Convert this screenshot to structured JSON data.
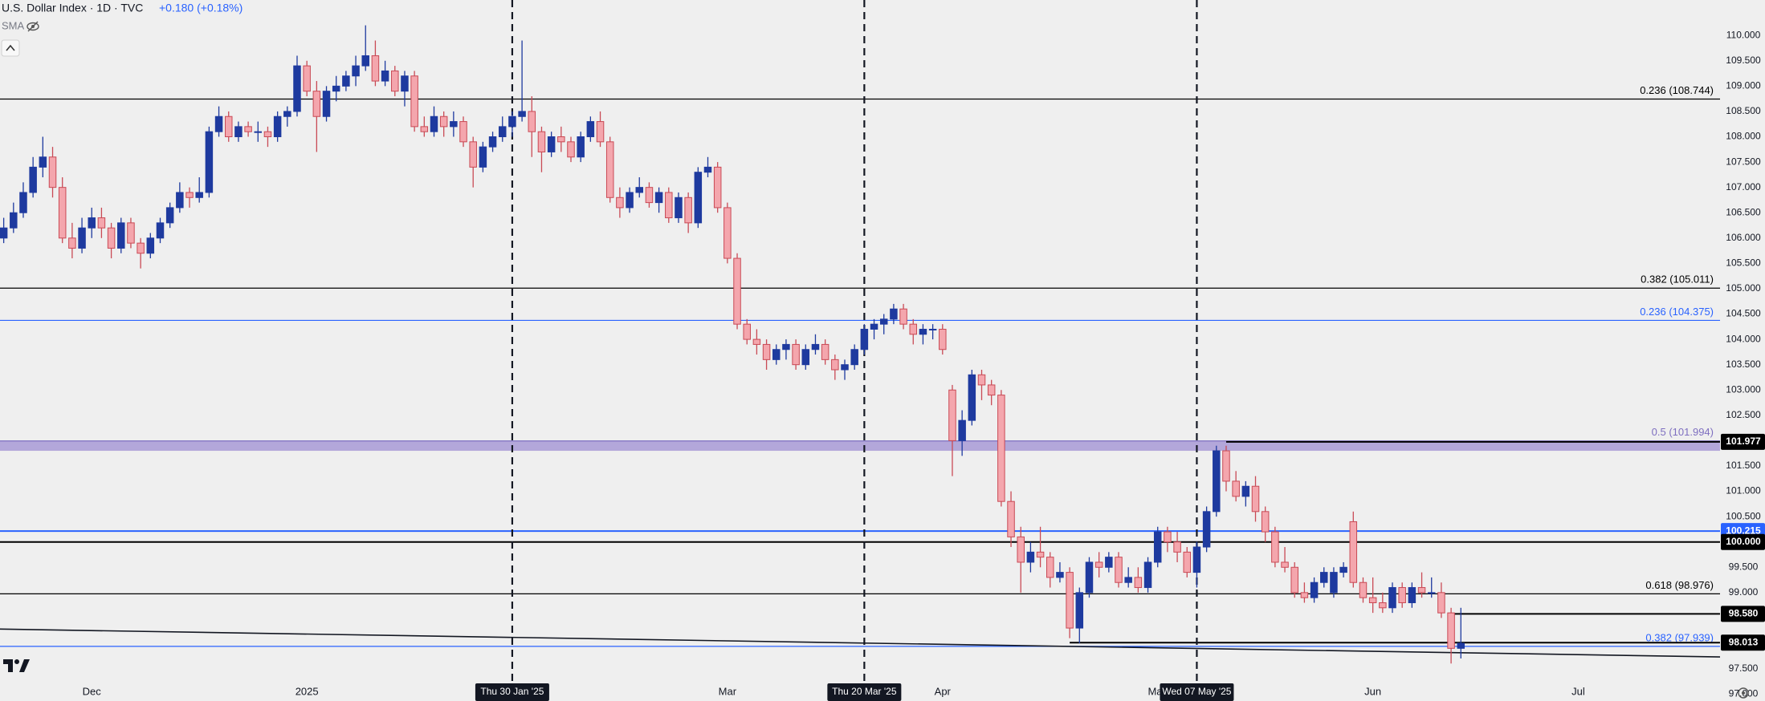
{
  "chart_data": {
    "type": "candlestick",
    "title": "U.S. Dollar Index · 1D · TVC",
    "change": "+0.180 (+0.18%)",
    "indicator": "SMA",
    "bull_color": "#1e3a9f",
    "bear_color": "#f4a6ad",
    "bear_edge": "#c94a55",
    "xlim": [
      -0.38,
      175.5
    ],
    "ylim": [
      96.86,
      110.7
    ],
    "xticks": [
      {
        "value": 9,
        "label": "Dec"
      },
      {
        "value": 31,
        "label": "2025"
      },
      {
        "value": 74,
        "label": "Mar"
      },
      {
        "value": 96,
        "label": "Apr"
      },
      {
        "value": 118,
        "label": "May"
      },
      {
        "value": 140,
        "label": "Jun"
      },
      {
        "value": 161,
        "label": "Jul"
      }
    ],
    "yticks": [
      {
        "value": 97,
        "label": "97.000"
      },
      {
        "value": 97.5,
        "label": "97.500"
      },
      {
        "value": 98,
        "label": "98.000"
      },
      {
        "value": 98.5,
        "label": "98.500"
      },
      {
        "value": 99,
        "label": "99.000"
      },
      {
        "value": 99.5,
        "label": "99.500"
      },
      {
        "value": 100,
        "label": "100.000"
      },
      {
        "value": 100.5,
        "label": "100.500"
      },
      {
        "value": 101,
        "label": "101.000"
      },
      {
        "value": 101.5,
        "label": "101.500"
      },
      {
        "value": 102,
        "label": "102.000"
      },
      {
        "value": 102.5,
        "label": "102.500"
      },
      {
        "value": 103,
        "label": "103.000"
      },
      {
        "value": 103.5,
        "label": "103.500"
      },
      {
        "value": 104,
        "label": "104.000"
      },
      {
        "value": 104.5,
        "label": "104.500"
      },
      {
        "value": 105,
        "label": "105.000"
      },
      {
        "value": 105.5,
        "label": "105.500"
      },
      {
        "value": 106,
        "label": "106.000"
      },
      {
        "value": 106.5,
        "label": "106.500"
      },
      {
        "value": 107,
        "label": "107.000"
      },
      {
        "value": 107.5,
        "label": "107.500"
      },
      {
        "value": 108,
        "label": "108.000"
      },
      {
        "value": 108.5,
        "label": "108.500"
      },
      {
        "value": 109,
        "label": "109.000"
      },
      {
        "value": 109.5,
        "label": "109.500"
      },
      {
        "value": 110,
        "label": "110.000"
      }
    ],
    "zone": {
      "values": [
        101.8,
        102.0
      ],
      "color": "#a89ad6"
    },
    "levels": [
      {
        "value": 108.744,
        "label": "0.236 (108.744)",
        "color": "#000000"
      },
      {
        "value": 105.011,
        "label": "0.382 (105.011)",
        "color": "#000000"
      },
      {
        "value": 104.375,
        "label": "0.236 (104.375)",
        "color": "#2962ff"
      },
      {
        "value": 101.994,
        "label": "0.5 (101.994)",
        "color": "#7e6fc0"
      },
      {
        "value": 98.976,
        "label": "0.618 (98.976)",
        "color": "#000000"
      },
      {
        "value": 97.939,
        "label": "0.382 (97.939)",
        "color": "#2962ff"
      }
    ],
    "price_tags": [
      {
        "price": 101.977,
        "color": "#000000",
        "start": 125
      },
      {
        "price": 100.215,
        "color": "#2962ff",
        "start": -0.38
      },
      {
        "price": {
          "value": 100,
          "label": "100.000"
        },
        "color": "#000000",
        "start": -0.38
      },
      {
        "price": {
          "value": 98.58,
          "label": "98.580"
        },
        "color": "#000000",
        "start": 148
      },
      {
        "price": 98.013,
        "color": "#000000",
        "start": 109
      }
    ],
    "trendline": {
      "x": [
        -0.38,
        175.5
      ],
      "values": [
        98.28,
        97.73
      ]
    },
    "vlines": [
      {
        "value": 52,
        "label": "Thu 30 Jan '25"
      },
      {
        "value": 88,
        "label": "Thu 20 Mar '25"
      },
      {
        "value": 122,
        "label": "Wed 07 May '25"
      }
    ],
    "ohlc": [
      [
        106.0,
        106.4,
        105.9,
        106.2
      ],
      [
        106.2,
        106.7,
        106.1,
        106.5
      ],
      [
        106.5,
        107.1,
        106.4,
        106.9
      ],
      [
        106.9,
        107.6,
        106.8,
        107.4
      ],
      [
        107.4,
        108.0,
        107.2,
        107.6
      ],
      [
        107.6,
        107.8,
        106.8,
        107.0
      ],
      [
        107.0,
        107.2,
        105.9,
        106.0
      ],
      [
        106.0,
        106.3,
        105.6,
        105.8
      ],
      [
        105.8,
        106.4,
        105.7,
        106.2
      ],
      [
        106.2,
        106.6,
        106.0,
        106.4
      ],
      [
        106.4,
        106.6,
        106.0,
        106.2
      ],
      [
        106.2,
        106.3,
        105.6,
        105.8
      ],
      [
        105.8,
        106.4,
        105.7,
        106.3
      ],
      [
        106.3,
        106.4,
        105.8,
        105.9
      ],
      [
        105.9,
        106.0,
        105.4,
        105.7
      ],
      [
        105.7,
        106.1,
        105.6,
        106.0
      ],
      [
        106.0,
        106.4,
        105.9,
        106.3
      ],
      [
        106.3,
        106.7,
        106.2,
        106.6
      ],
      [
        106.6,
        107.1,
        106.5,
        106.9
      ],
      [
        106.9,
        107.0,
        106.6,
        106.8
      ],
      [
        106.8,
        107.2,
        106.7,
        106.9
      ],
      [
        106.9,
        108.2,
        106.8,
        108.1
      ],
      [
        108.1,
        108.6,
        108.0,
        108.4
      ],
      [
        108.4,
        108.5,
        107.9,
        108.0
      ],
      [
        108.0,
        108.3,
        107.9,
        108.2
      ],
      [
        108.2,
        108.3,
        108.0,
        108.1
      ],
      [
        108.1,
        108.3,
        107.9,
        108.1
      ],
      [
        108.1,
        108.2,
        107.8,
        108.0
      ],
      [
        108.0,
        108.5,
        107.9,
        108.4
      ],
      [
        108.4,
        108.6,
        108.2,
        108.5
      ],
      [
        108.5,
        109.6,
        108.4,
        109.4
      ],
      [
        109.4,
        109.5,
        108.8,
        108.9
      ],
      [
        108.9,
        109.1,
        107.7,
        108.4
      ],
      [
        108.4,
        109.0,
        108.3,
        108.9
      ],
      [
        108.9,
        109.2,
        108.7,
        109.0
      ],
      [
        109.0,
        109.3,
        108.9,
        109.2
      ],
      [
        109.2,
        109.6,
        109.0,
        109.4
      ],
      [
        109.4,
        110.2,
        109.3,
        109.6
      ],
      [
        109.6,
        109.9,
        109.0,
        109.1
      ],
      [
        109.1,
        109.5,
        109.0,
        109.3
      ],
      [
        109.3,
        109.4,
        108.8,
        108.9
      ],
      [
        108.9,
        109.3,
        108.6,
        109.2
      ],
      [
        109.2,
        109.3,
        108.1,
        108.2
      ],
      [
        108.2,
        108.4,
        108.0,
        108.1
      ],
      [
        108.1,
        108.6,
        108.0,
        108.4
      ],
      [
        108.4,
        108.5,
        108.0,
        108.2
      ],
      [
        108.2,
        108.5,
        108.0,
        108.3
      ],
      [
        108.3,
        108.4,
        107.8,
        107.9
      ],
      [
        107.9,
        108.0,
        107.0,
        107.4
      ],
      [
        107.4,
        107.9,
        107.3,
        107.8
      ],
      [
        107.8,
        108.1,
        107.7,
        108.0
      ],
      [
        108.0,
        108.4,
        107.9,
        108.2
      ],
      [
        108.2,
        108.5,
        108.0,
        108.4
      ],
      [
        108.4,
        109.9,
        108.3,
        108.5
      ],
      [
        108.5,
        108.8,
        107.6,
        108.1
      ],
      [
        108.1,
        108.2,
        107.3,
        107.7
      ],
      [
        107.7,
        108.1,
        107.6,
        108.0
      ],
      [
        108.0,
        108.2,
        107.7,
        107.9
      ],
      [
        107.9,
        108.0,
        107.5,
        107.6
      ],
      [
        107.6,
        108.1,
        107.5,
        108.0
      ],
      [
        108.0,
        108.4,
        107.9,
        108.3
      ],
      [
        108.3,
        108.5,
        107.8,
        107.9
      ],
      [
        107.9,
        108.0,
        106.7,
        106.8
      ],
      [
        106.8,
        107.0,
        106.4,
        106.6
      ],
      [
        106.6,
        107.0,
        106.5,
        106.9
      ],
      [
        106.9,
        107.2,
        106.8,
        107.0
      ],
      [
        107.0,
        107.1,
        106.6,
        106.7
      ],
      [
        106.7,
        107.0,
        106.5,
        106.9
      ],
      [
        106.9,
        107.0,
        106.3,
        106.4
      ],
      [
        106.4,
        106.9,
        106.3,
        106.8
      ],
      [
        106.8,
        106.9,
        106.1,
        106.3
      ],
      [
        106.3,
        107.4,
        106.2,
        107.3
      ],
      [
        107.3,
        107.6,
        107.2,
        107.4
      ],
      [
        107.4,
        107.5,
        106.5,
        106.6
      ],
      [
        106.6,
        106.7,
        105.5,
        105.6
      ],
      [
        105.6,
        105.7,
        104.2,
        104.3
      ],
      [
        104.3,
        104.4,
        103.9,
        104.0
      ],
      [
        104.0,
        104.2,
        103.7,
        103.9
      ],
      [
        103.9,
        104.0,
        103.4,
        103.6
      ],
      [
        103.6,
        103.9,
        103.5,
        103.8
      ],
      [
        103.8,
        104.0,
        103.6,
        103.9
      ],
      [
        103.9,
        104.0,
        103.4,
        103.5
      ],
      [
        103.5,
        103.9,
        103.4,
        103.8
      ],
      [
        103.8,
        104.1,
        103.7,
        103.9
      ],
      [
        103.9,
        104.0,
        103.5,
        103.6
      ],
      [
        103.6,
        103.7,
        103.2,
        103.4
      ],
      [
        103.4,
        103.6,
        103.2,
        103.5
      ],
      [
        103.5,
        103.9,
        103.4,
        103.8
      ],
      [
        103.8,
        104.3,
        103.7,
        104.2
      ],
      [
        104.2,
        104.4,
        104.0,
        104.3
      ],
      [
        104.3,
        104.5,
        104.1,
        104.4
      ],
      [
        104.4,
        104.7,
        104.3,
        104.6
      ],
      [
        104.6,
        104.7,
        104.2,
        104.3
      ],
      [
        104.3,
        104.4,
        103.9,
        104.1
      ],
      [
        104.1,
        104.3,
        103.9,
        104.2
      ],
      [
        104.2,
        104.3,
        104.0,
        104.2
      ],
      [
        104.2,
        104.3,
        103.7,
        103.8
      ],
      [
        103.0,
        103.1,
        101.3,
        102.0
      ],
      [
        102.0,
        102.6,
        101.7,
        102.4
      ],
      [
        102.4,
        103.4,
        102.3,
        103.3
      ],
      [
        103.3,
        103.4,
        102.8,
        103.1
      ],
      [
        103.1,
        103.2,
        102.7,
        102.9
      ],
      [
        102.9,
        103.0,
        100.7,
        100.8
      ],
      [
        100.8,
        101.0,
        99.9,
        100.1
      ],
      [
        100.1,
        100.3,
        99.0,
        99.6
      ],
      [
        99.6,
        100.0,
        99.4,
        99.8
      ],
      [
        99.8,
        100.3,
        99.5,
        99.7
      ],
      [
        99.7,
        99.8,
        99.1,
        99.3
      ],
      [
        99.3,
        99.6,
        99.2,
        99.4
      ],
      [
        99.4,
        99.5,
        98.1,
        98.3
      ],
      [
        98.3,
        99.1,
        98.0,
        99.0
      ],
      [
        99.0,
        99.7,
        98.9,
        99.6
      ],
      [
        99.6,
        99.8,
        99.3,
        99.5
      ],
      [
        99.5,
        99.8,
        99.4,
        99.7
      ],
      [
        99.7,
        99.8,
        99.1,
        99.2
      ],
      [
        99.2,
        99.5,
        99.1,
        99.3
      ],
      [
        99.3,
        99.5,
        99.0,
        99.1
      ],
      [
        99.1,
        99.7,
        99.0,
        99.6
      ],
      [
        99.6,
        100.3,
        99.5,
        100.2
      ],
      [
        100.2,
        100.3,
        99.8,
        100.0
      ],
      [
        100.0,
        100.2,
        99.6,
        99.8
      ],
      [
        99.8,
        99.9,
        99.3,
        99.4
      ],
      [
        99.4,
        100.0,
        99.1,
        99.9
      ],
      [
        99.9,
        100.7,
        99.8,
        100.6
      ],
      [
        100.6,
        101.9,
        100.5,
        101.8
      ],
      [
        101.8,
        101.9,
        101.0,
        101.2
      ],
      [
        101.2,
        101.4,
        100.8,
        100.9
      ],
      [
        100.9,
        101.2,
        100.7,
        101.1
      ],
      [
        101.1,
        101.3,
        100.4,
        100.6
      ],
      [
        100.6,
        100.7,
        100.0,
        100.2
      ],
      [
        100.2,
        100.3,
        99.5,
        99.6
      ],
      [
        99.6,
        99.9,
        99.4,
        99.5
      ],
      [
        99.5,
        99.6,
        98.9,
        99.0
      ],
      [
        99.0,
        99.2,
        98.8,
        98.9
      ],
      [
        98.9,
        99.3,
        98.8,
        99.2
      ],
      [
        99.2,
        99.5,
        99.1,
        99.4
      ],
      [
        99.0,
        99.5,
        98.9,
        99.4
      ],
      [
        99.4,
        99.6,
        99.3,
        99.5
      ],
      [
        100.4,
        100.6,
        99.1,
        99.2
      ],
      [
        99.2,
        99.3,
        98.8,
        98.9
      ],
      [
        98.9,
        99.3,
        98.6,
        98.8
      ],
      [
        98.8,
        99.0,
        98.6,
        98.7
      ],
      [
        98.7,
        99.2,
        98.6,
        99.1
      ],
      [
        99.1,
        99.2,
        98.7,
        98.8
      ],
      [
        98.8,
        99.2,
        98.7,
        99.1
      ],
      [
        99.1,
        99.4,
        98.9,
        99.0
      ],
      [
        99.0,
        99.3,
        98.9,
        99.0
      ],
      [
        99.0,
        99.2,
        98.5,
        98.6
      ],
      [
        98.6,
        98.7,
        97.6,
        97.9
      ],
      [
        97.9,
        98.7,
        97.7,
        98.0
      ]
    ]
  }
}
